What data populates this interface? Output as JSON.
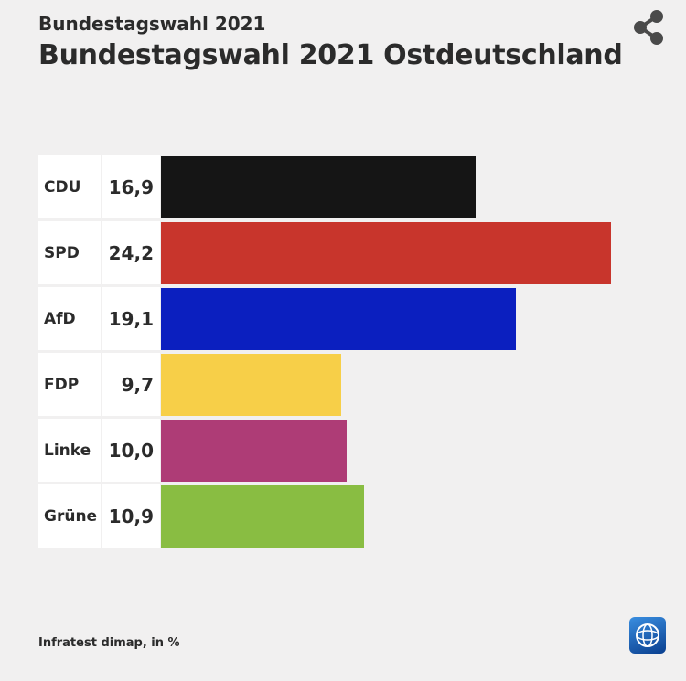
{
  "header": {
    "supertitle": "Bundestagswahl 2021",
    "title": "Bundestagswahl 2021 Ostdeutschland"
  },
  "chart_data": {
    "type": "bar",
    "orientation": "horizontal",
    "title": "Bundestagswahl 2021 Ostdeutschland",
    "unit": "%",
    "categories": [
      "CDU",
      "SPD",
      "AfD",
      "FDP",
      "Linke",
      "Grüne"
    ],
    "values": [
      16.9,
      24.2,
      19.1,
      9.7,
      10.0,
      10.9
    ],
    "value_labels": [
      "16,9",
      "24,2",
      "19,1",
      "9,7",
      "10,0",
      "10,9"
    ],
    "colors": [
      "#151515",
      "#c8352c",
      "#0b1fbf",
      "#f7cf48",
      "#ae3c76",
      "#89bd42"
    ],
    "xlim": [
      0,
      24.2
    ]
  },
  "footer": {
    "source": "Infratest dimap, in %"
  },
  "icons": {
    "share": "share-icon",
    "logo": "tagesschau-logo-icon"
  }
}
